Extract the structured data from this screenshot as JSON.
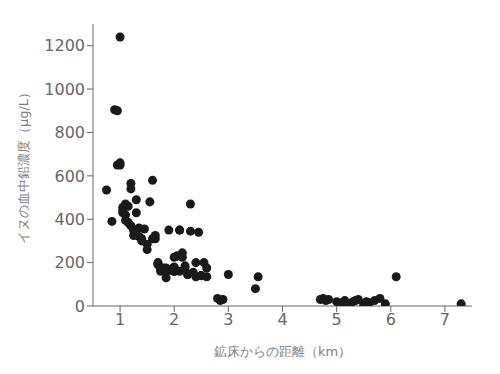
{
  "chart_data": {
    "type": "scatter",
    "xlabel": "鉱床からの距離（km）",
    "ylabel": "イヌの血中鉛濃度（μg/L）",
    "x": [
      0.75,
      0.85,
      0.9,
      0.95,
      0.95,
      1.0,
      1.0,
      1.05,
      1.05,
      1.05,
      1.1,
      1.1,
      1.1,
      1.15,
      1.15,
      1.2,
      1.2,
      1.2,
      1.25,
      1.25,
      1.3,
      1.3,
      1.35,
      1.35,
      1.4,
      1.4,
      1.45,
      1.5,
      1.5,
      1.55,
      1.6,
      1.6,
      1.65,
      1.65,
      1.7,
      1.7,
      1.7,
      1.75,
      1.75,
      1.8,
      1.8,
      1.85,
      1.85,
      1.85,
      1.9,
      1.9,
      1.95,
      1.95,
      2.0,
      2.0,
      2.0,
      2.0,
      2.05,
      2.05,
      2.1,
      2.1,
      2.1,
      2.15,
      2.15,
      2.2,
      2.2,
      2.25,
      2.25,
      2.3,
      2.3,
      2.35,
      2.4,
      2.4,
      2.45,
      2.5,
      2.5,
      2.55,
      2.6,
      2.6,
      2.8,
      2.85,
      2.9,
      3.0,
      3.5,
      3.55,
      4.7,
      4.75,
      4.8,
      4.85,
      5.0,
      5.1,
      5.15,
      5.2,
      5.25,
      5.3,
      5.35,
      5.4,
      5.5,
      5.55,
      5.6,
      5.7,
      5.8,
      5.9,
      6.1,
      7.3,
      1.0
    ],
    "values": [
      535,
      390,
      905,
      900,
      650,
      660,
      650,
      455,
      440,
      430,
      470,
      420,
      395,
      460,
      385,
      565,
      540,
      370,
      350,
      325,
      490,
      430,
      360,
      320,
      310,
      300,
      355,
      285,
      260,
      480,
      580,
      310,
      325,
      310,
      200,
      195,
      190,
      165,
      160,
      175,
      165,
      175,
      165,
      130,
      350,
      165,
      170,
      165,
      160,
      160,
      225,
      180,
      230,
      230,
      350,
      350,
      160,
      245,
      225,
      185,
      175,
      145,
      145,
      470,
      345,
      155,
      200,
      135,
      340,
      140,
      140,
      200,
      175,
      135,
      35,
      25,
      30,
      145,
      80,
      135,
      30,
      35,
      25,
      30,
      20,
      15,
      25,
      10,
      5,
      20,
      25,
      30,
      5,
      20,
      15,
      25,
      35,
      10,
      135,
      10,
      1240
    ],
    "color": "#1a1a1a",
    "xlim": [
      0.5,
      7.5
    ],
    "ylim": [
      0,
      1300
    ],
    "xticks": [
      1,
      2,
      3,
      4,
      5,
      6,
      7
    ],
    "yticks": [
      0,
      200,
      400,
      600,
      800,
      1000,
      1200
    ],
    "grid": false
  }
}
